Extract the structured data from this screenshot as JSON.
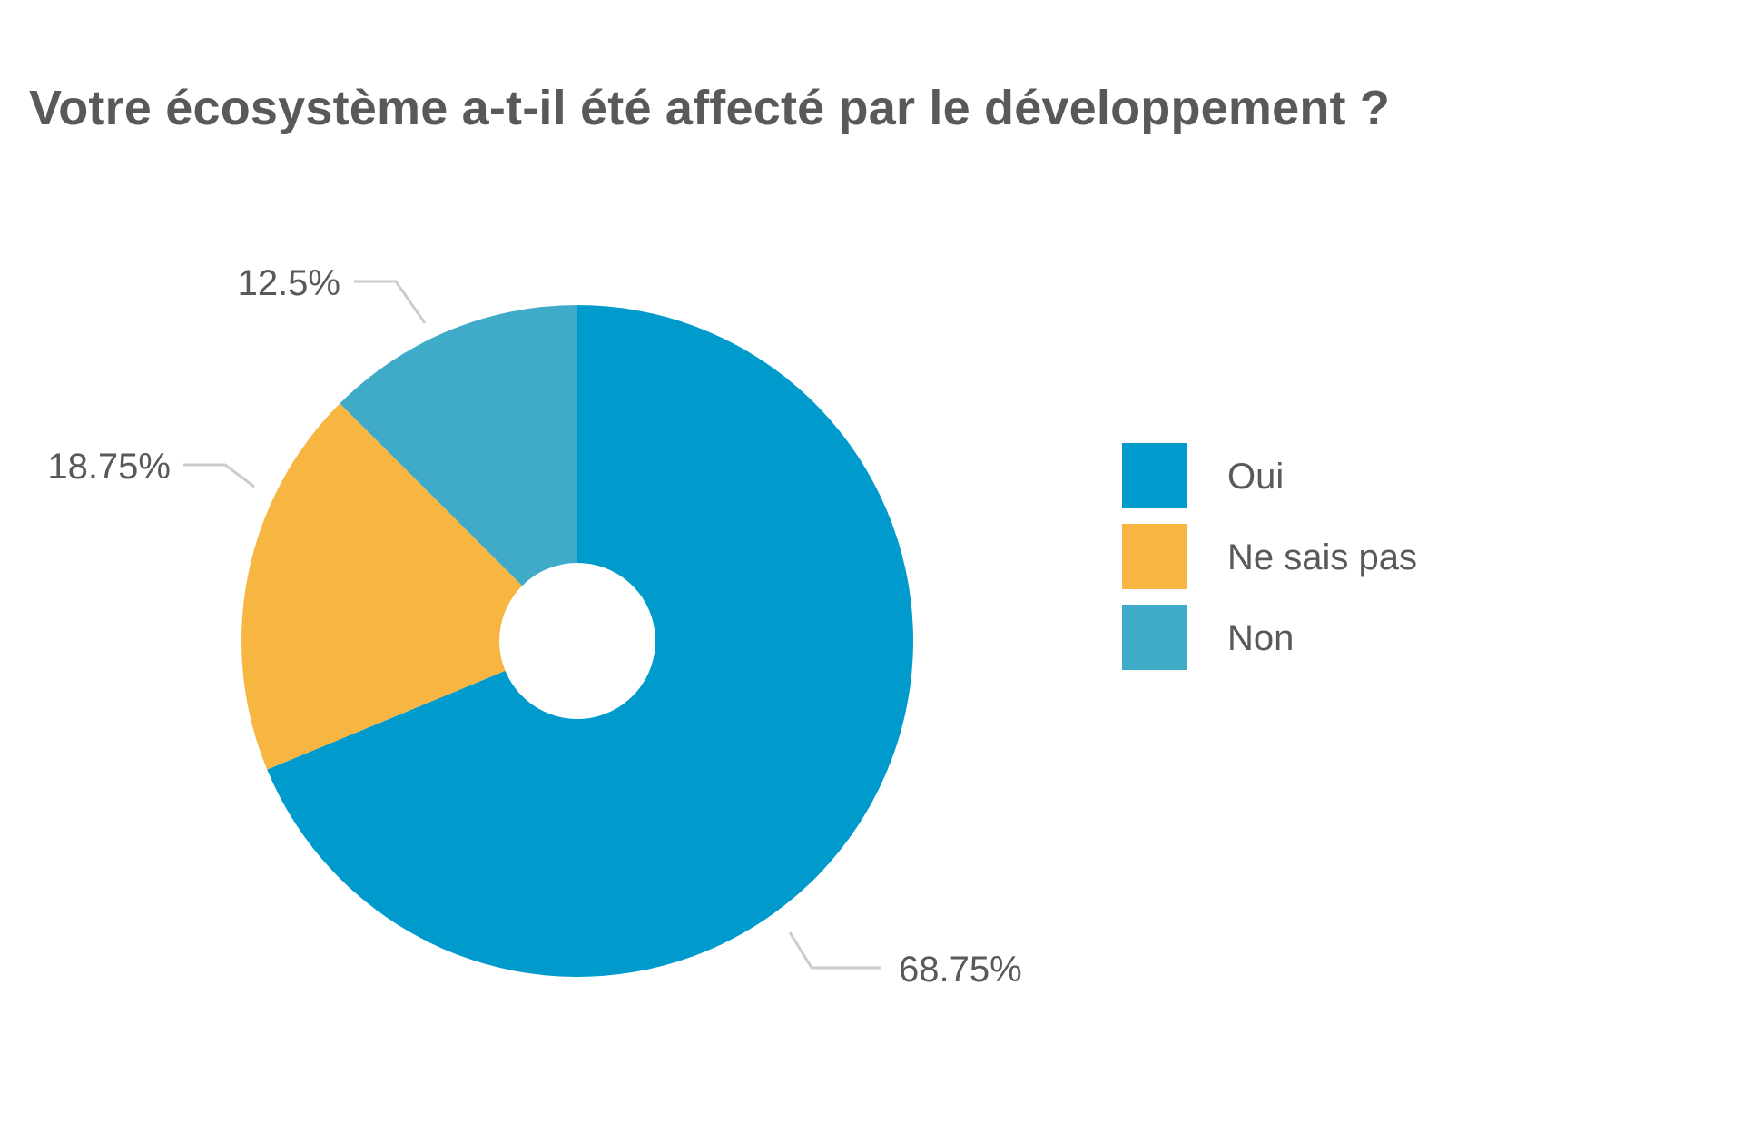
{
  "chart_data": {
    "type": "pie",
    "title": "Votre écosystème a-t-il été affecté par le développement ?",
    "donut": true,
    "legend_position": "right",
    "slices": [
      {
        "label": "Oui",
        "value": 68.75,
        "display": "68.75%",
        "color": "#009bcc"
      },
      {
        "label": "Ne sais pas",
        "value": 18.75,
        "display": "18.75%",
        "color": "#f7b541"
      },
      {
        "label": "Non",
        "value": 12.5,
        "display": "12.5%",
        "color": "#40abc9"
      }
    ]
  },
  "colors": {
    "text": "#58595b",
    "leader_line": "#cccccc",
    "background": "#ffffff"
  }
}
